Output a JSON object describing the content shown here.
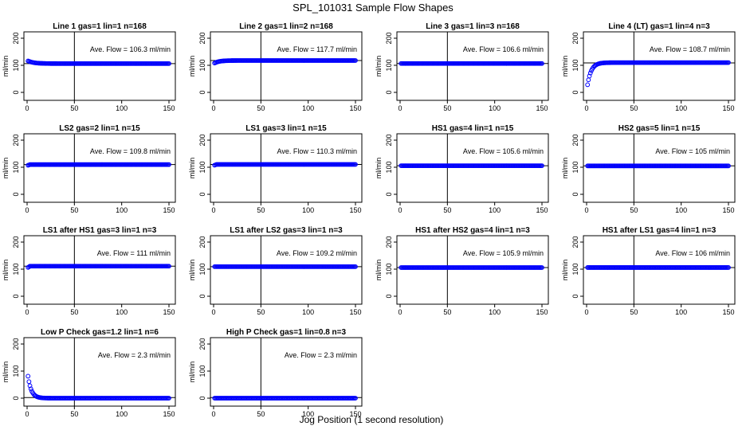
{
  "figure": {
    "title": "SPL_101031  Sample Flow Shapes",
    "xlabel": "Jog Position (1 second resolution)"
  },
  "chart_data": [
    {
      "type": "scatter",
      "title": "Line 1 gas=1 lin=1 n=168",
      "annotation": "Ave. Flow =  106.3  ml/min",
      "ylabel": "ml/min",
      "xlim": [
        0,
        150
      ],
      "ylim": [
        0,
        200
      ],
      "xticks": [
        0,
        50,
        100,
        150
      ],
      "yticks": [
        0,
        100,
        200
      ],
      "vline": 50,
      "hline": 106.3,
      "colors": {
        "marker": "#0000ff"
      },
      "shape": "start_high",
      "series": [
        {
          "start": 118,
          "level": 106.3
        }
      ]
    },
    {
      "type": "scatter",
      "title": "Line 2 gas=1 lin=2 n=168",
      "annotation": "Ave. Flow =  117.7  ml/min",
      "ylabel": "ml/min",
      "xlim": [
        0,
        150
      ],
      "ylim": [
        0,
        200
      ],
      "xticks": [
        0,
        50,
        100,
        150
      ],
      "yticks": [
        0,
        100,
        200
      ],
      "vline": 50,
      "hline": 117.7,
      "colors": {
        "marker": "#0000ff"
      },
      "shape": "start_low",
      "series": [
        {
          "start": 106,
          "level": 117.7
        }
      ]
    },
    {
      "type": "scatter",
      "title": "Line 3 gas=1 lin=3 n=168",
      "annotation": "Ave. Flow =  106.6  ml/min",
      "ylabel": "ml/min",
      "xlim": [
        0,
        150
      ],
      "ylim": [
        0,
        200
      ],
      "xticks": [
        0,
        50,
        100,
        150
      ],
      "yticks": [
        0,
        100,
        200
      ],
      "vline": 50,
      "hline": 106.6,
      "colors": {
        "marker": "#0000ff"
      },
      "shape": "flat",
      "series": [
        {
          "start": 106.6,
          "level": 106.6
        }
      ]
    },
    {
      "type": "scatter",
      "title": "Line 4 (LT) gas=1 lin=4 n=3",
      "annotation": "Ave. Flow =  108.7  ml/min",
      "ylabel": "ml/min",
      "xlim": [
        0,
        150
      ],
      "ylim": [
        0,
        200
      ],
      "xticks": [
        0,
        50,
        100,
        150
      ],
      "yticks": [
        0,
        100,
        200
      ],
      "vline": 50,
      "hline": 108.7,
      "colors": {
        "marker": "#0000ff"
      },
      "shape": "rise",
      "series": [
        {
          "start": 5,
          "level": 110
        }
      ]
    },
    {
      "type": "scatter",
      "title": "LS2 gas=2 lin=1 n=15",
      "annotation": "Ave. Flow =  109.8  ml/min",
      "ylabel": "ml/min",
      "xlim": [
        0,
        150
      ],
      "ylim": [
        0,
        200
      ],
      "xticks": [
        0,
        50,
        100,
        150
      ],
      "yticks": [
        0,
        100,
        200
      ],
      "vline": 50,
      "hline": 109.8,
      "colors": {
        "marker": "#0000ff"
      },
      "shape": "flat",
      "series": [
        {
          "start": 106,
          "level": 109.8
        }
      ]
    },
    {
      "type": "scatter",
      "title": "LS1 gas=3 lin=1 n=15",
      "annotation": "Ave. Flow =  110.3  ml/min",
      "ylabel": "ml/min",
      "xlim": [
        0,
        150
      ],
      "ylim": [
        0,
        200
      ],
      "xticks": [
        0,
        50,
        100,
        150
      ],
      "yticks": [
        0,
        100,
        200
      ],
      "vline": 50,
      "hline": 110.3,
      "colors": {
        "marker": "#0000ff"
      },
      "shape": "flat",
      "series": [
        {
          "start": 106,
          "level": 110.3
        }
      ]
    },
    {
      "type": "scatter",
      "title": "HS1 gas=4 lin=1 n=15",
      "annotation": "Ave. Flow =  105.6  ml/min",
      "ylabel": "ml/min",
      "xlim": [
        0,
        150
      ],
      "ylim": [
        0,
        200
      ],
      "xticks": [
        0,
        50,
        100,
        150
      ],
      "yticks": [
        0,
        100,
        200
      ],
      "vline": 50,
      "hline": 105.6,
      "colors": {
        "marker": "#0000ff"
      },
      "shape": "flat",
      "series": [
        {
          "start": 105.6,
          "level": 105.6
        }
      ]
    },
    {
      "type": "scatter",
      "title": "HS2 gas=5 lin=1 n=15",
      "annotation": "Ave. Flow =  105  ml/min",
      "ylabel": "ml/min",
      "xlim": [
        0,
        150
      ],
      "ylim": [
        0,
        200
      ],
      "xticks": [
        0,
        50,
        100,
        150
      ],
      "yticks": [
        0,
        100,
        200
      ],
      "vline": 50,
      "hline": 105,
      "colors": {
        "marker": "#0000ff"
      },
      "shape": "flat",
      "series": [
        {
          "start": 105,
          "level": 105
        }
      ]
    },
    {
      "type": "scatter",
      "title": "LS1 after HS1 gas=3 lin=1 n=3",
      "annotation": "Ave. Flow =  111  ml/min",
      "ylabel": "ml/min",
      "xlim": [
        0,
        150
      ],
      "ylim": [
        0,
        200
      ],
      "xticks": [
        0,
        50,
        100,
        150
      ],
      "yticks": [
        0,
        100,
        200
      ],
      "vline": 50,
      "hline": 111,
      "colors": {
        "marker": "#0000ff"
      },
      "shape": "flat",
      "series": [
        {
          "start": 104,
          "level": 111
        }
      ]
    },
    {
      "type": "scatter",
      "title": "LS1 after LS2 gas=3 lin=1 n=3",
      "annotation": "Ave. Flow =  109.2  ml/min",
      "ylabel": "ml/min",
      "xlim": [
        0,
        150
      ],
      "ylim": [
        0,
        200
      ],
      "xticks": [
        0,
        50,
        100,
        150
      ],
      "yticks": [
        0,
        100,
        200
      ],
      "vline": 50,
      "hline": 109.2,
      "colors": {
        "marker": "#0000ff"
      },
      "shape": "flat",
      "series": [
        {
          "start": 109.2,
          "level": 109.2
        }
      ]
    },
    {
      "type": "scatter",
      "title": "HS1 after HS2 gas=4 lin=1 n=3",
      "annotation": "Ave. Flow =  105.9  ml/min",
      "ylabel": "ml/min",
      "xlim": [
        0,
        150
      ],
      "ylim": [
        0,
        200
      ],
      "xticks": [
        0,
        50,
        100,
        150
      ],
      "yticks": [
        0,
        100,
        200
      ],
      "vline": 50,
      "hline": 105.9,
      "colors": {
        "marker": "#0000ff"
      },
      "shape": "flat",
      "series": [
        {
          "start": 105.9,
          "level": 105.9
        }
      ]
    },
    {
      "type": "scatter",
      "title": "HS1 after LS1 gas=4 lin=1 n=3",
      "annotation": "Ave. Flow =  106  ml/min",
      "ylabel": "ml/min",
      "xlim": [
        0,
        150
      ],
      "ylim": [
        0,
        200
      ],
      "xticks": [
        0,
        50,
        100,
        150
      ],
      "yticks": [
        0,
        100,
        200
      ],
      "vline": 50,
      "hline": 106,
      "colors": {
        "marker": "#0000ff"
      },
      "shape": "flat",
      "series": [
        {
          "start": 106,
          "level": 106
        }
      ]
    },
    {
      "type": "scatter",
      "title": "Low P Check gas=1.2 lin=1 n=6",
      "annotation": "Ave. Flow =  2.3  ml/min",
      "ylabel": "ml/min",
      "xlim": [
        0,
        150
      ],
      "ylim": [
        0,
        200
      ],
      "xticks": [
        0,
        50,
        100,
        150
      ],
      "yticks": [
        0,
        100,
        200
      ],
      "vline": 50,
      "hline": 2.3,
      "colors": {
        "marker": "#0000ff"
      },
      "shape": "decay",
      "series": [
        {
          "start": 108,
          "level": 0
        }
      ]
    },
    {
      "type": "scatter",
      "title": "High P Check gas=1 lin=0.8 n=3",
      "annotation": "Ave. Flow =  2.3  ml/min",
      "ylabel": "ml/min",
      "xlim": [
        0,
        150
      ],
      "ylim": [
        0,
        200
      ],
      "xticks": [
        0,
        50,
        100,
        150
      ],
      "yticks": [
        0,
        100,
        200
      ],
      "vline": 50,
      "hline": 2.3,
      "colors": {
        "marker": "#0000ff"
      },
      "shape": "flat",
      "series": [
        {
          "start": 0,
          "level": 0
        }
      ]
    }
  ]
}
